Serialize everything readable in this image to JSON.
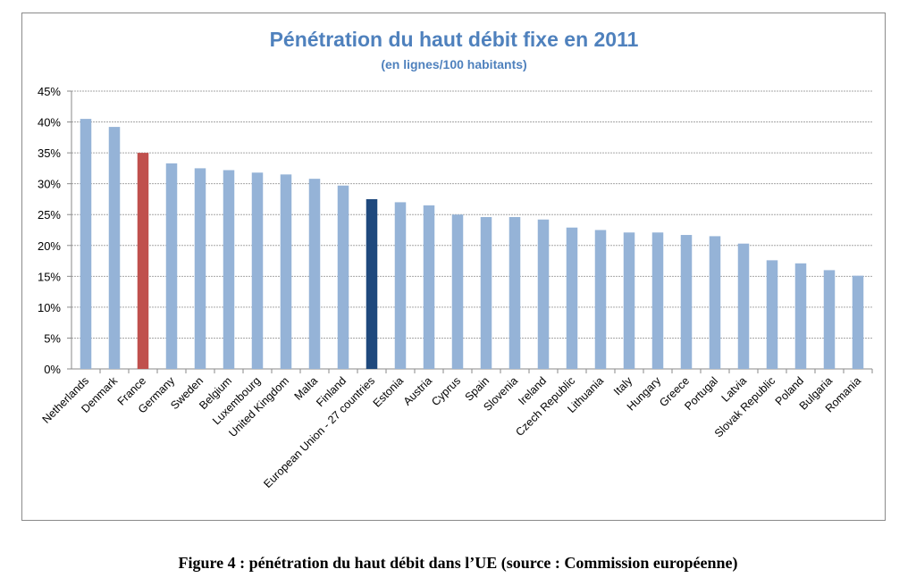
{
  "chart_data": {
    "type": "bar",
    "title": "Pénétration du haut débit fixe en 2011",
    "subtitle": "(en lignes/100 habitants)",
    "xlabel": "",
    "ylabel": "",
    "ylim": [
      0,
      45
    ],
    "yticks": [
      "0%",
      "5%",
      "10%",
      "15%",
      "20%",
      "25%",
      "30%",
      "35%",
      "40%",
      "45%"
    ],
    "grid": true,
    "legend": "none",
    "categories": [
      "Netherlands",
      "Denmark",
      "France",
      "Germany",
      "Sweden",
      "Belgium",
      "Luxembourg",
      "United Kingdom",
      "Malta",
      "Finland",
      "European Union - 27 countries",
      "Estonia",
      "Austria",
      "Cyprus",
      "Spain",
      "Slovenia",
      "Ireland",
      "Czech Republic",
      "Lithuania",
      "Italy",
      "Hungary",
      "Greece",
      "Portugal",
      "Latvia",
      "Slovak Republic",
      "Poland",
      "Bulgaria",
      "Romania"
    ],
    "values": [
      40.5,
      39.2,
      35.0,
      33.3,
      32.5,
      32.2,
      31.8,
      31.5,
      30.8,
      29.7,
      27.5,
      27.0,
      26.5,
      25.0,
      24.6,
      24.6,
      24.2,
      22.9,
      22.5,
      22.1,
      22.1,
      21.7,
      21.5,
      20.3,
      17.6,
      17.1,
      16.0,
      15.1
    ],
    "colors": {
      "default": "#95b3d7",
      "France": "#c0504d",
      "European Union - 27 countries": "#1f497d",
      "title": "#4f81bd"
    }
  },
  "caption": "Figure 4 : pénétration du haut débit dans l’UE (source : Commission européenne)"
}
